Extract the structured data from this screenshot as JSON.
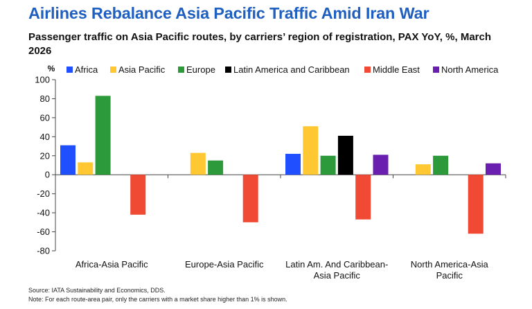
{
  "header": {
    "title": "Airlines Rebalance Asia Pacific Traffic Amid Iran War",
    "subtitle": "Passenger traffic on Asia Pacific routes, by carriers’ region of registration, PAX YoY, %, March 2026"
  },
  "footer": {
    "source": "Source: IATA Sustainability and Economics, DDS.",
    "note": "Note: For each route-area pair, only the carriers with a market share higher than 1% is shown."
  },
  "chart_data": {
    "type": "bar",
    "title": "",
    "xlabel": "",
    "ylabel": "%",
    "ylim": [
      -80,
      100
    ],
    "yticks": [
      -80,
      -60,
      -40,
      -20,
      0,
      20,
      40,
      60,
      80,
      100
    ],
    "grid": false,
    "legend_position": "top",
    "categories": [
      [
        "Africa-Asia Pacific"
      ],
      [
        "Europe-Asia Pacific"
      ],
      [
        "Latin Am. And Caribbean-",
        "Asia Pacific"
      ],
      [
        "North America-Asia",
        "Pacific"
      ]
    ],
    "series": [
      {
        "name": "Africa",
        "color": "#1f4fff",
        "values": [
          31,
          null,
          22,
          null
        ]
      },
      {
        "name": "Asia Pacific",
        "color": "#ffc832",
        "values": [
          13,
          23,
          51,
          11
        ]
      },
      {
        "name": "Europe",
        "color": "#2c9a3a",
        "values": [
          83,
          15,
          20,
          20
        ]
      },
      {
        "name": "Latin America and Caribbean",
        "color": "#000000",
        "values": [
          null,
          null,
          41,
          null
        ]
      },
      {
        "name": "Middle East",
        "color": "#f04a35",
        "values": [
          -42,
          -50,
          -47,
          -62
        ]
      },
      {
        "name": "North America",
        "color": "#6a1fb0",
        "values": [
          null,
          null,
          21,
          12
        ]
      }
    ]
  }
}
